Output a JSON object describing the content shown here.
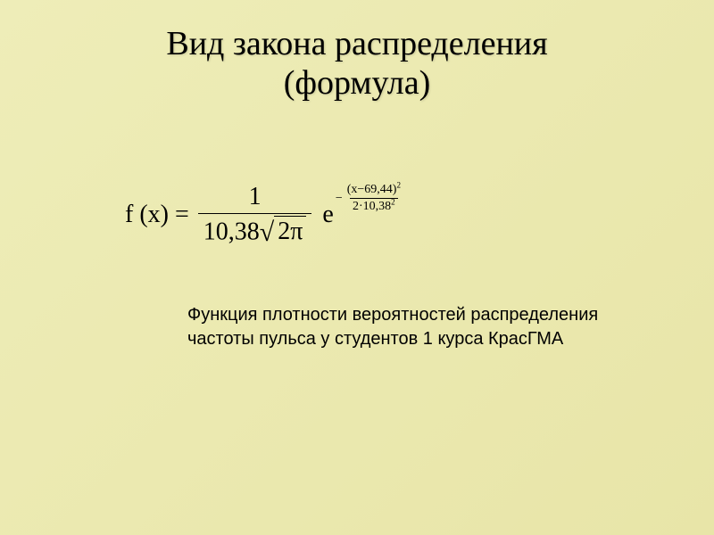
{
  "slide": {
    "background_gradient": [
      "#eeedb8",
      "#e8e5a8"
    ],
    "title_line1": "Вид закона распределения",
    "title_line2": "(формула)",
    "title_fontsize": 38,
    "title_color": "#000000"
  },
  "formula": {
    "lhs": "f (x) =",
    "frac_numerator": "1",
    "denominator_coeff": "10,38",
    "sqrt_argument": "2π",
    "base": "e",
    "exponent_sign": "−",
    "exp_num_inner": "x−69,44",
    "exp_num_power": "2",
    "exp_den_coeff": "2·10,38",
    "exp_den_power": "2",
    "fontsize_main": 28,
    "fontsize_exponent": 14,
    "color": "#000000",
    "mu": 69.44,
    "sigma": 10.38
  },
  "description": {
    "line1": "Функция плотности вероятностей распределения",
    "line2": "частоты пульса у студентов 1 курса КрасГМА",
    "fontsize": 20,
    "font_family": "Arial",
    "color": "#000000"
  }
}
